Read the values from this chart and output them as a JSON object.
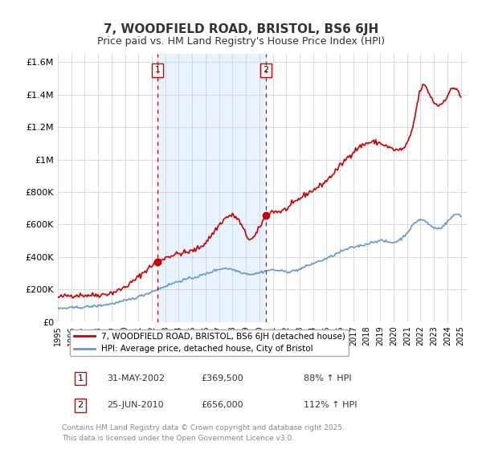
{
  "title": "7, WOODFIELD ROAD, BRISTOL, BS6 6JH",
  "subtitle": "Price paid vs. HM Land Registry's House Price Index (HPI)",
  "title_fontsize": 11,
  "subtitle_fontsize": 9,
  "background_color": "#ffffff",
  "plot_bg_color": "#ffffff",
  "grid_color": "#cccccc",
  "red_line_color": "#cc0000",
  "blue_line_color": "#6699cc",
  "shade_color": "#ddeeff",
  "marker_color": "#cc0000",
  "vline_color": "#dd0000",
  "ylabel_ticks": [
    "£0",
    "£200K",
    "£400K",
    "£600K",
    "£800K",
    "£1M",
    "£1.2M",
    "£1.4M",
    "£1.6M"
  ],
  "ytick_vals": [
    0,
    200000,
    400000,
    600000,
    800000,
    1000000,
    1200000,
    1400000,
    1600000
  ],
  "ylim": [
    0,
    1650000
  ],
  "xlim_start": 1995.0,
  "xlim_end": 2025.5,
  "xtick_years": [
    1995,
    1996,
    1997,
    1998,
    1999,
    2000,
    2001,
    2002,
    2003,
    2004,
    2005,
    2006,
    2007,
    2008,
    2009,
    2010,
    2011,
    2012,
    2013,
    2014,
    2015,
    2016,
    2017,
    2018,
    2019,
    2020,
    2021,
    2022,
    2023,
    2024,
    2025
  ],
  "purchase1_x": 2002.417,
  "purchase1_y": 369500,
  "purchase2_x": 2010.484,
  "purchase2_y": 656000,
  "vline1_x": 2002.417,
  "vline2_x": 2010.484,
  "shade_x1": 2002.417,
  "shade_x2": 2010.484,
  "legend_entries": [
    "7, WOODFIELD ROAD, BRISTOL, BS6 6JH (detached house)",
    "HPI: Average price, detached house, City of Bristol"
  ],
  "table_data": [
    [
      "1",
      "31-MAY-2002",
      "£369,500",
      "88% ↑ HPI"
    ],
    [
      "2",
      "25-JUN-2010",
      "£656,000",
      "112% ↑ HPI"
    ]
  ],
  "footer_text": "Contains HM Land Registry data © Crown copyright and database right 2025.\nThis data is licensed under the Open Government Licence v3.0.",
  "footer_fontsize": 6.5,
  "note_fontsize": 7
}
